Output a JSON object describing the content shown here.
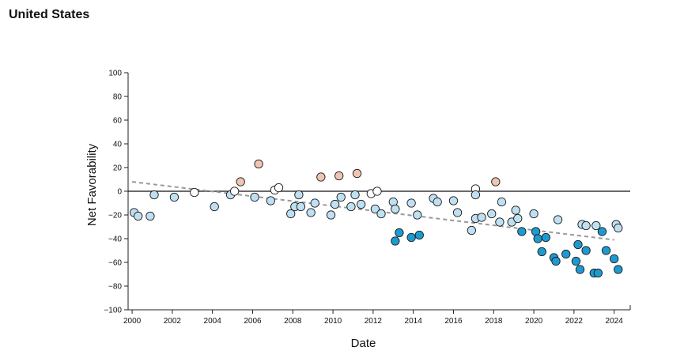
{
  "page": {
    "title": "United States"
  },
  "chart_data": {
    "type": "scatter",
    "xlabel": "Date",
    "ylabel": "Net Favorability",
    "xlim": [
      1999.8,
      2024.8
    ],
    "ylim": [
      -100,
      100
    ],
    "x_ticks": [
      2000,
      2002,
      2004,
      2006,
      2008,
      2010,
      2012,
      2014,
      2016,
      2018,
      2020,
      2022,
      2024
    ],
    "y_ticks": [
      100,
      80,
      60,
      40,
      20,
      0,
      -20,
      -40,
      -60,
      -80,
      -100
    ],
    "zero_line": true,
    "grid": false,
    "trendline": {
      "style": "dashed",
      "color": "#999999",
      "start": [
        2000.0,
        8
      ],
      "end": [
        2024.0,
        -41
      ]
    },
    "marker_colors": {
      "positive": "#f2c4b3",
      "neutral": "#ffffff",
      "mild_negative": "#bfe0f2",
      "strong_negative": "#1d9bd1"
    },
    "points": [
      {
        "x": 2000.1,
        "y": -18
      },
      {
        "x": 2000.3,
        "y": -21
      },
      {
        "x": 2000.9,
        "y": -21
      },
      {
        "x": 2001.1,
        "y": -3
      },
      {
        "x": 2002.1,
        "y": -5
      },
      {
        "x": 2003.1,
        "y": -1
      },
      {
        "x": 2004.1,
        "y": -13
      },
      {
        "x": 2004.9,
        "y": -3
      },
      {
        "x": 2005.1,
        "y": 0
      },
      {
        "x": 2005.4,
        "y": 8
      },
      {
        "x": 2006.1,
        "y": -5
      },
      {
        "x": 2006.3,
        "y": 23
      },
      {
        "x": 2006.9,
        "y": -8
      },
      {
        "x": 2007.1,
        "y": 1
      },
      {
        "x": 2007.3,
        "y": 3
      },
      {
        "x": 2007.9,
        "y": -19
      },
      {
        "x": 2008.1,
        "y": -13
      },
      {
        "x": 2008.3,
        "y": -3
      },
      {
        "x": 2008.4,
        "y": -13
      },
      {
        "x": 2008.9,
        "y": -18
      },
      {
        "x": 2009.1,
        "y": -10
      },
      {
        "x": 2009.4,
        "y": 12
      },
      {
        "x": 2009.9,
        "y": -20
      },
      {
        "x": 2010.1,
        "y": -11
      },
      {
        "x": 2010.3,
        "y": 13
      },
      {
        "x": 2010.4,
        "y": -5
      },
      {
        "x": 2010.9,
        "y": -13
      },
      {
        "x": 2011.1,
        "y": -3
      },
      {
        "x": 2011.2,
        "y": 15
      },
      {
        "x": 2011.4,
        "y": -11
      },
      {
        "x": 2011.9,
        "y": -2
      },
      {
        "x": 2012.1,
        "y": -15
      },
      {
        "x": 2012.2,
        "y": 0
      },
      {
        "x": 2012.4,
        "y": -19
      },
      {
        "x": 2013.0,
        "y": -9
      },
      {
        "x": 2013.1,
        "y": -15
      },
      {
        "x": 2013.1,
        "y": -42
      },
      {
        "x": 2013.3,
        "y": -35
      },
      {
        "x": 2013.9,
        "y": -10
      },
      {
        "x": 2013.9,
        "y": -39
      },
      {
        "x": 2014.2,
        "y": -20
      },
      {
        "x": 2014.3,
        "y": -37
      },
      {
        "x": 2015.0,
        "y": -6
      },
      {
        "x": 2015.2,
        "y": -9
      },
      {
        "x": 2016.0,
        "y": -8
      },
      {
        "x": 2016.2,
        "y": -18
      },
      {
        "x": 2016.9,
        "y": -33
      },
      {
        "x": 2017.1,
        "y": 2
      },
      {
        "x": 2017.1,
        "y": -3
      },
      {
        "x": 2017.1,
        "y": -23
      },
      {
        "x": 2017.4,
        "y": -22
      },
      {
        "x": 2017.9,
        "y": -19
      },
      {
        "x": 2018.1,
        "y": 8
      },
      {
        "x": 2018.3,
        "y": -26
      },
      {
        "x": 2018.4,
        "y": -9
      },
      {
        "x": 2018.9,
        "y": -26
      },
      {
        "x": 2019.1,
        "y": -16
      },
      {
        "x": 2019.2,
        "y": -23
      },
      {
        "x": 2019.4,
        "y": -34
      },
      {
        "x": 2020.0,
        "y": -19
      },
      {
        "x": 2020.1,
        "y": -34
      },
      {
        "x": 2020.2,
        "y": -40
      },
      {
        "x": 2020.4,
        "y": -51
      },
      {
        "x": 2020.6,
        "y": -39
      },
      {
        "x": 2021.0,
        "y": -56
      },
      {
        "x": 2021.1,
        "y": -59
      },
      {
        "x": 2021.2,
        "y": -24
      },
      {
        "x": 2021.6,
        "y": -53
      },
      {
        "x": 2022.1,
        "y": -59
      },
      {
        "x": 2022.2,
        "y": -45
      },
      {
        "x": 2022.3,
        "y": -66
      },
      {
        "x": 2022.4,
        "y": -28
      },
      {
        "x": 2022.6,
        "y": -29
      },
      {
        "x": 2022.6,
        "y": -50
      },
      {
        "x": 2023.0,
        "y": -69
      },
      {
        "x": 2023.1,
        "y": -29
      },
      {
        "x": 2023.2,
        "y": -69
      },
      {
        "x": 2023.4,
        "y": -34
      },
      {
        "x": 2023.6,
        "y": -50
      },
      {
        "x": 2024.0,
        "y": -57
      },
      {
        "x": 2024.1,
        "y": -28
      },
      {
        "x": 2024.2,
        "y": -31
      },
      {
        "x": 2024.2,
        "y": -66
      }
    ]
  }
}
